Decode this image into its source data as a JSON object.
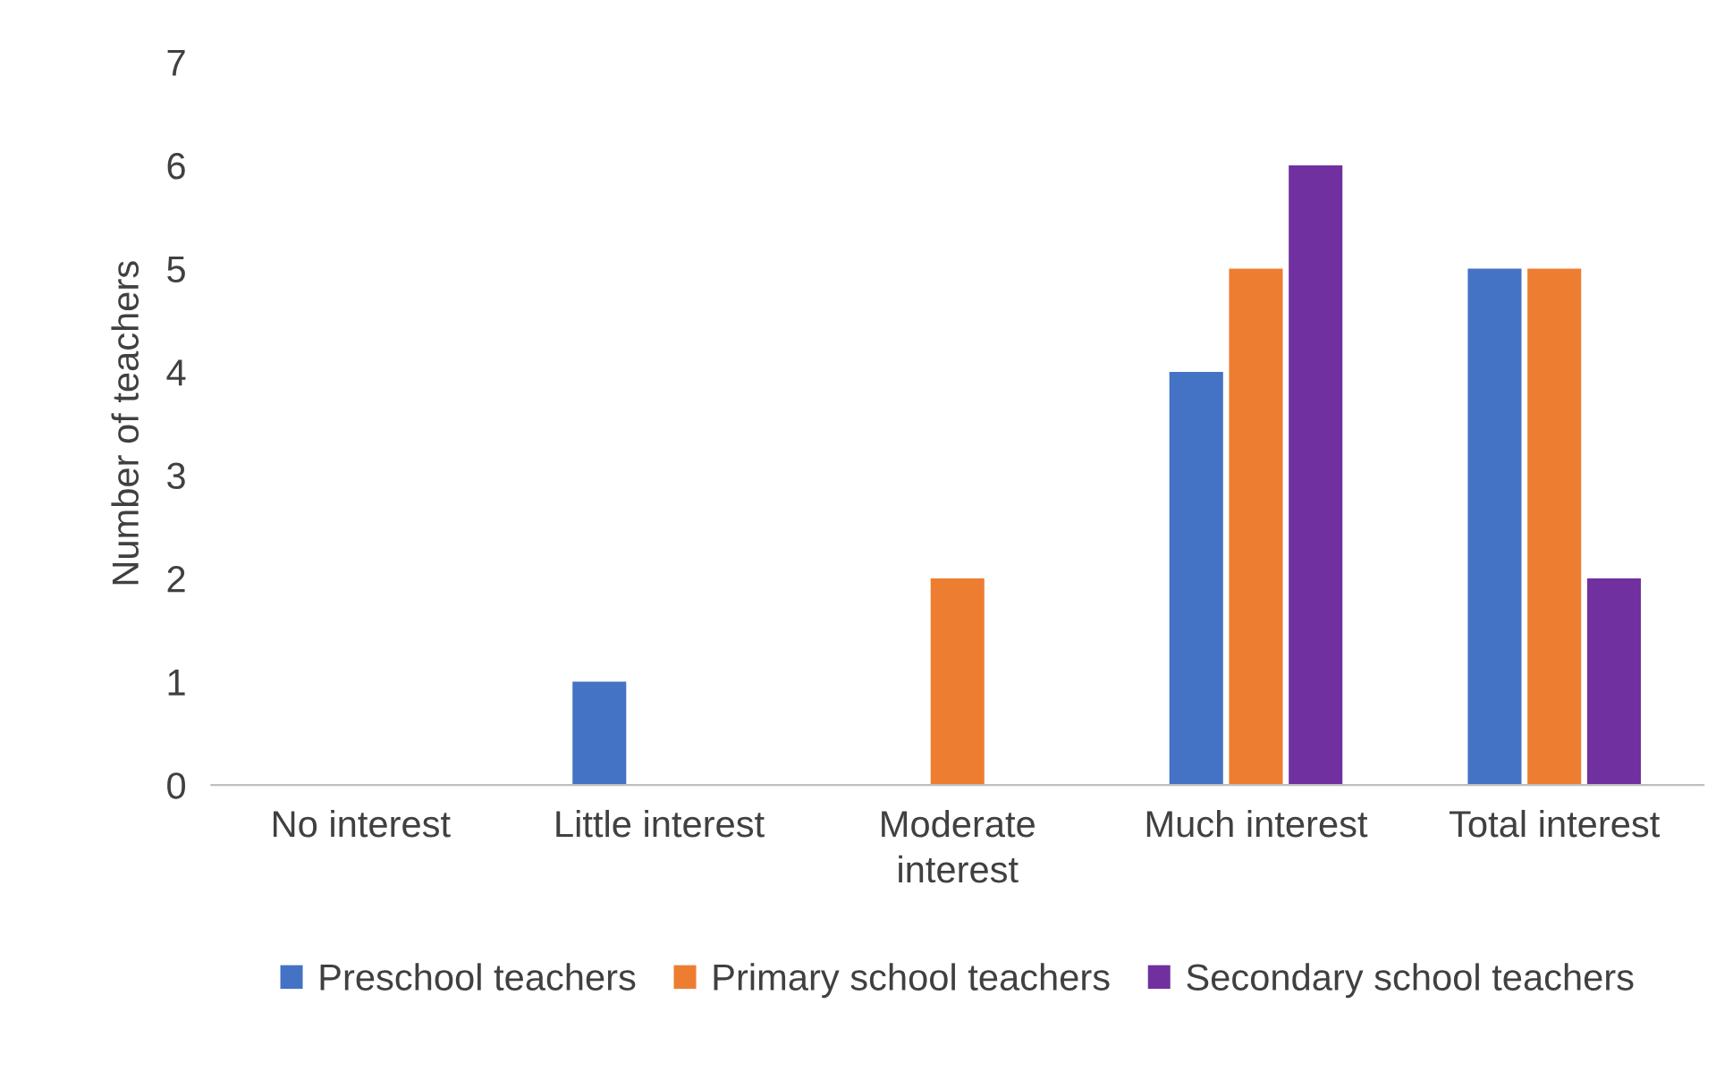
{
  "chart_data": {
    "type": "bar",
    "ylabel": "Number of teachers",
    "categories": [
      "No interest",
      "Little interest",
      "Moderate interest",
      "Much interest",
      "Total interest"
    ],
    "series": [
      {
        "name": "Preschool teachers",
        "color": "#4472c4",
        "values": [
          0,
          1,
          0,
          4,
          5
        ]
      },
      {
        "name": "Primary school teachers",
        "color": "#ed7d31",
        "values": [
          0,
          0,
          2,
          5,
          5
        ]
      },
      {
        "name": "Secondary school teachers",
        "color": "#7030a0",
        "values": [
          0,
          0,
          0,
          6,
          2
        ]
      }
    ],
    "ylim": [
      0,
      7
    ],
    "yticks": [
      0,
      1,
      2,
      3,
      4,
      5,
      6,
      7
    ],
    "grid": false,
    "legend": "bottom"
  }
}
